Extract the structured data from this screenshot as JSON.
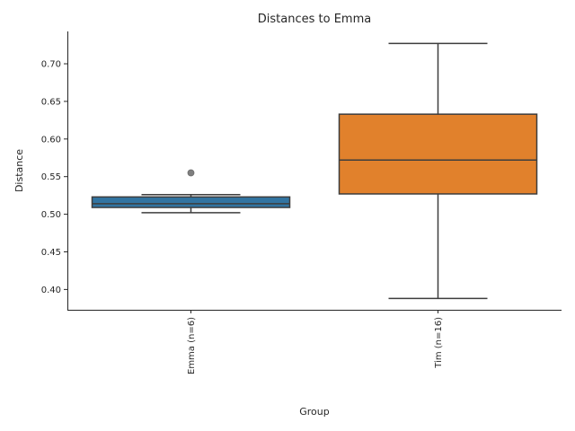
{
  "chart_data": {
    "type": "box",
    "title": "Distances to Emma",
    "xlabel": "Group",
    "ylabel": "Distance",
    "ylim": [
      0.373,
      0.743
    ],
    "yticks": [
      0.4,
      0.45,
      0.5,
      0.55,
      0.6,
      0.65,
      0.7
    ],
    "ytick_labels": [
      "0.40",
      "0.45",
      "0.50",
      "0.55",
      "0.60",
      "0.65",
      "0.70"
    ],
    "grid": false,
    "x_tick_rotation": "vertical",
    "groups": [
      {
        "label": "Emma (n=6)",
        "color": "#3274a1",
        "whisker_low": 0.502,
        "q1": 0.509,
        "median": 0.514,
        "q3": 0.523,
        "whisker_high": 0.526,
        "outliers": [
          0.555
        ]
      },
      {
        "label": "Tim (n=16)",
        "color": "#e1812c",
        "whisker_low": 0.388,
        "q1": 0.527,
        "median": 0.572,
        "q3": 0.633,
        "whisker_high": 0.727,
        "outliers": []
      }
    ]
  }
}
